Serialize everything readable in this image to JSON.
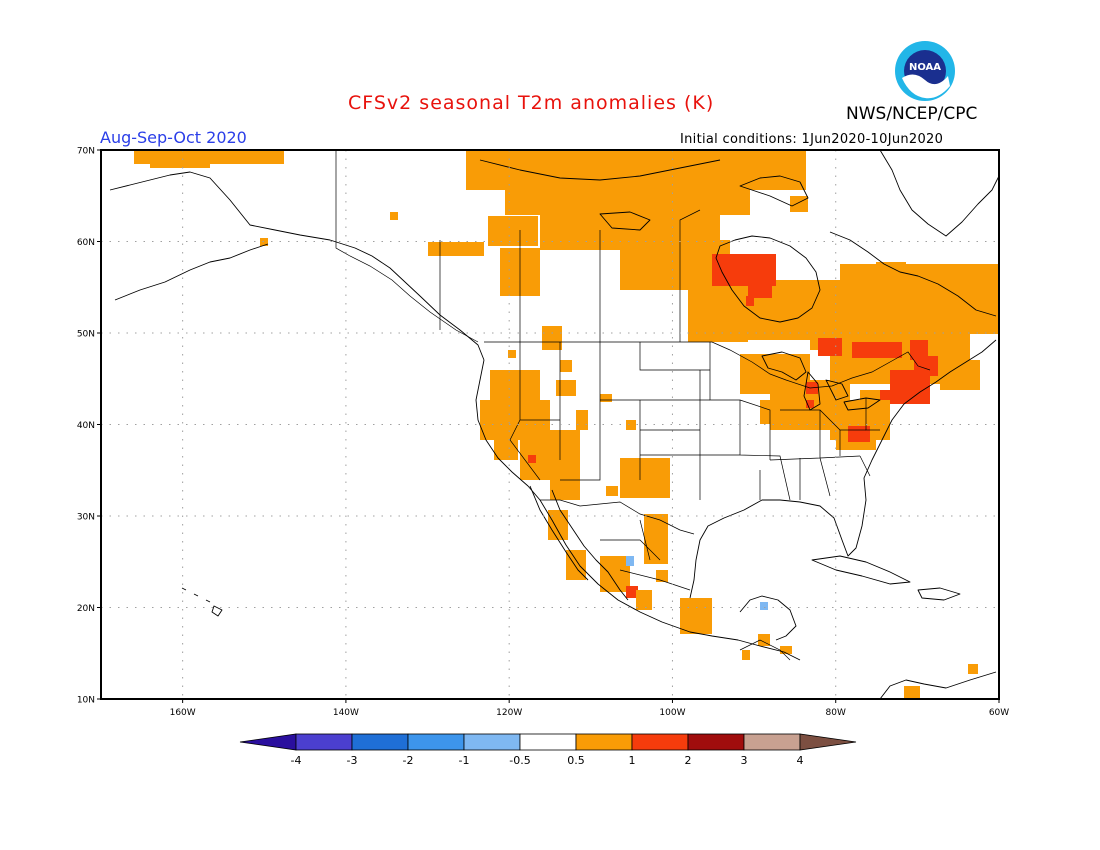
{
  "title": "CFSv2 seasonal T2m anomalies (K)",
  "agency": "NWS/NCEP/CPC",
  "logo_text": "NOAA",
  "period": "Aug-Sep-Oct 2020",
  "initial_conditions": "Initial conditions: 1Jun2020-10Jun2020",
  "lat_labels": [
    "70N",
    "60N",
    "50N",
    "40N",
    "30N",
    "20N",
    "10N"
  ],
  "lon_labels": [
    "160W",
    "140W",
    "120W",
    "100W",
    "80W",
    "60W"
  ],
  "colorbar": {
    "labels": [
      "-4",
      "-3",
      "-2",
      "-1",
      "-0.5",
      "0.5",
      "1",
      "2",
      "3",
      "4"
    ],
    "colors": [
      "#2a0f9e",
      "#4b3fcf",
      "#1f6fd6",
      "#3d95ec",
      "#7fb8f2",
      "#ffffff",
      "#f99c06",
      "#f63c0c",
      "#a00d0d",
      "#c8a191",
      "#7c4f41"
    ]
  },
  "colors": {
    "title": "#e8120c",
    "period": "#2a3ee8",
    "anom_05_1": "#f99c06",
    "anom_1_2": "#f63c0c",
    "anom_neg": "#7fb8f2",
    "land_outline": "#000000",
    "grid": "#a0a0a0"
  }
}
